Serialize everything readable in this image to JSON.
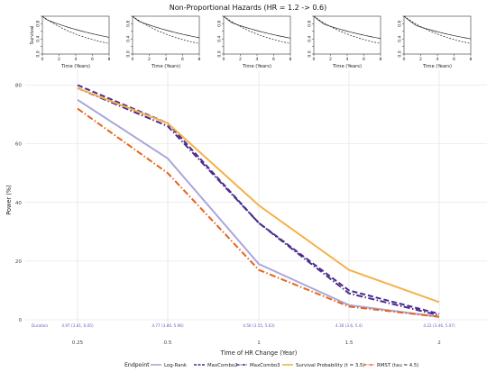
{
  "title": "Non-Proportional Hazards (HR = 1.2 -> 0.6)",
  "inset_y_label": "Survival",
  "inset_x_label": "Time (Years)",
  "inset_x_ticks": [
    "0",
    "2",
    "4",
    "6",
    "8"
  ],
  "inset_y_ticks": [
    "0.0",
    "0.2",
    "0.4",
    "0.6",
    "0.8",
    "1.0"
  ],
  "colors": {
    "log_rank": "#a9a6dc",
    "maxcombo2": "#4b2c8e",
    "maxcombo3": "#4b2c8e",
    "survival_prob": "#f5b14a",
    "rmst": "#e8631a",
    "duration_text": "#6a60c0",
    "grid": "#dddddd"
  },
  "duration_label": "Duration",
  "durations": [
    "4.97 (3.81, 6.05)",
    "4.77 (3.86, 5.96)",
    "4.56 (3.55, 5.63)",
    "4.36 (3.6, 5.4)",
    "4.22 (3.46, 5.07)"
  ],
  "chart_data": {
    "type": "line",
    "xlabel": "Time of HR Change (Year)",
    "ylabel": "Power (%)",
    "x": [
      0.25,
      0.5,
      1,
      1.5,
      2
    ],
    "x_tick_labels": [
      "0.25",
      "0.5",
      "1",
      "1.5",
      "2"
    ],
    "ylim": [
      0,
      82
    ],
    "y_ticks": [
      0,
      20,
      40,
      60,
      80
    ],
    "grid": true,
    "legend_placement": "bottom",
    "legend_title": "Endpoint",
    "series": [
      {
        "name": "Log-Rank",
        "key": "log_rank",
        "dash": "solid",
        "values": [
          75,
          55,
          19,
          5,
          1
        ]
      },
      {
        "name": "MaxCombo2",
        "key": "maxcombo2",
        "dash": "dash",
        "values": [
          80,
          67,
          33,
          10,
          2
        ]
      },
      {
        "name": "MaxCombo3",
        "key": "maxcombo3",
        "dash": "dashdot",
        "values": [
          79,
          66,
          33,
          9,
          1.5
        ]
      },
      {
        "name": "Survival Probability (t = 3.5)",
        "key": "survival_prob",
        "dash": "solid",
        "values": [
          79,
          67,
          39,
          17,
          6
        ]
      },
      {
        "name": "RMST (tau = 4.5)",
        "key": "rmst",
        "dash": "dashdot",
        "values": [
          72,
          50,
          17,
          4.5,
          1
        ]
      }
    ]
  }
}
